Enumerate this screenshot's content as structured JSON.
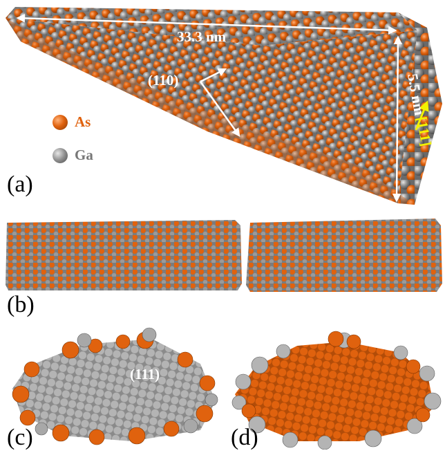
{
  "panels": {
    "a": {
      "label": "(a)",
      "length_label": "33.3 nm",
      "width_label": "5.5 nm",
      "facet_label": "(110)",
      "direction_label": "[111]"
    },
    "b": {
      "label": "(b)"
    },
    "c": {
      "label": "(c)",
      "facet_label": "(111)"
    },
    "d": {
      "label": "(d)"
    }
  },
  "legend": [
    {
      "label": "As",
      "color": "#e0620e"
    },
    {
      "label": "Ga",
      "color": "#8c8c8c"
    }
  ],
  "colors": {
    "as": "#e0620e",
    "ga": "#8c8c8c",
    "as_dark": "#a8470a",
    "ga_dark": "#5e5e5e",
    "arrow_white": "#ffffff",
    "arrow_yellow": "#f2f200"
  }
}
